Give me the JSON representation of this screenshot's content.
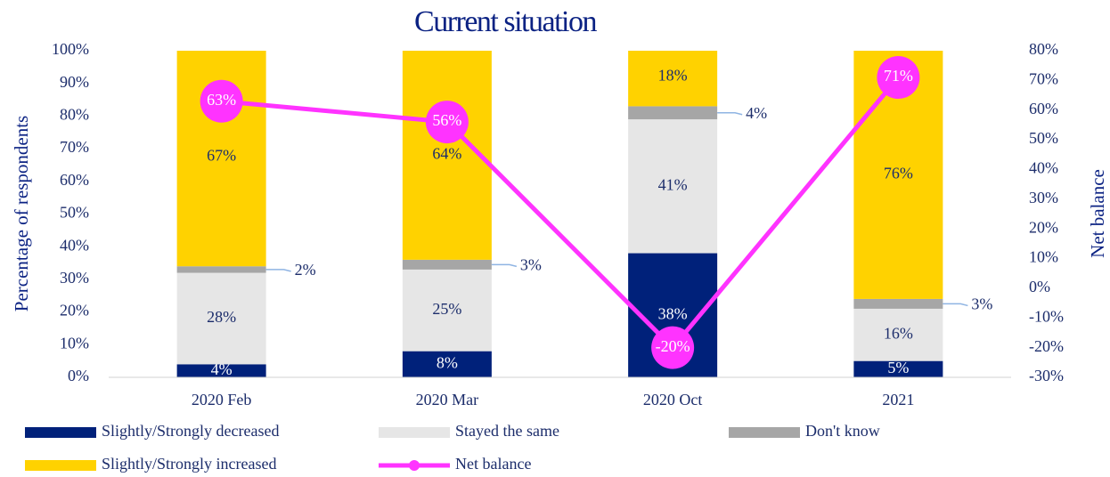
{
  "chart_data": {
    "type": "bar",
    "stacked": true,
    "title": "Current situation",
    "y_label": "Percentage of respondents",
    "y2_label": "Net balance",
    "categories": [
      "2020 Feb",
      "2020 Mar",
      "2020 Oct",
      "2021"
    ],
    "series": [
      {
        "name": "Slightly/Strongly decreased",
        "color": "#00217a",
        "values": [
          4,
          8,
          38,
          5
        ],
        "value_labels": [
          "4%",
          "8%",
          "38%",
          "5%"
        ]
      },
      {
        "name": "Stayed the same",
        "color": "#e6e6e6",
        "values": [
          28,
          25,
          41,
          16
        ],
        "value_labels": [
          "28%",
          "25%",
          "41%",
          "16%"
        ]
      },
      {
        "name": "Don't know",
        "color": "#a6a6a6",
        "values": [
          2,
          3,
          4,
          3
        ],
        "value_labels": [
          "2%",
          "3%",
          "4%",
          "3%"
        ]
      },
      {
        "name": "Slightly/Strongly increased",
        "color": "#ffd200",
        "values": [
          67,
          64,
          18,
          76
        ],
        "value_labels": [
          "67%",
          "64%",
          "18%",
          "76%"
        ]
      },
      {
        "name": "Net balance",
        "type": "line",
        "axis": "y2",
        "color": "#ff33ff",
        "values": [
          63,
          56,
          -20,
          71
        ],
        "value_labels": [
          "63%",
          "56%",
          "-20%",
          "71%"
        ]
      }
    ],
    "ylim": [
      0,
      100
    ],
    "yticks": [
      {
        "value": 0,
        "label": "0%"
      },
      {
        "value": 10,
        "label": "10%"
      },
      {
        "value": 20,
        "label": "20%"
      },
      {
        "value": 30,
        "label": "30%"
      },
      {
        "value": 40,
        "label": "40%"
      },
      {
        "value": 50,
        "label": "50%"
      },
      {
        "value": 60,
        "label": "60%"
      },
      {
        "value": 70,
        "label": "70%"
      },
      {
        "value": 80,
        "label": "80%"
      },
      {
        "value": 90,
        "label": "90%"
      },
      {
        "value": 100,
        "label": "100%"
      }
    ],
    "y2lim": [
      -30,
      80
    ],
    "y2ticks": [
      {
        "value": -30,
        "label": "-30%"
      },
      {
        "value": -20,
        "label": "-20%"
      },
      {
        "value": -10,
        "label": "-10%"
      },
      {
        "value": 0,
        "label": "0%"
      },
      {
        "value": 10,
        "label": "10%"
      },
      {
        "value": 20,
        "label": "20%"
      },
      {
        "value": 30,
        "label": "30%"
      },
      {
        "value": 40,
        "label": "40%"
      },
      {
        "value": 50,
        "label": "50%"
      },
      {
        "value": 60,
        "label": "60%"
      },
      {
        "value": 70,
        "label": "70%"
      },
      {
        "value": 80,
        "label": "80%"
      }
    ],
    "legend": "bottom",
    "grid": false
  }
}
